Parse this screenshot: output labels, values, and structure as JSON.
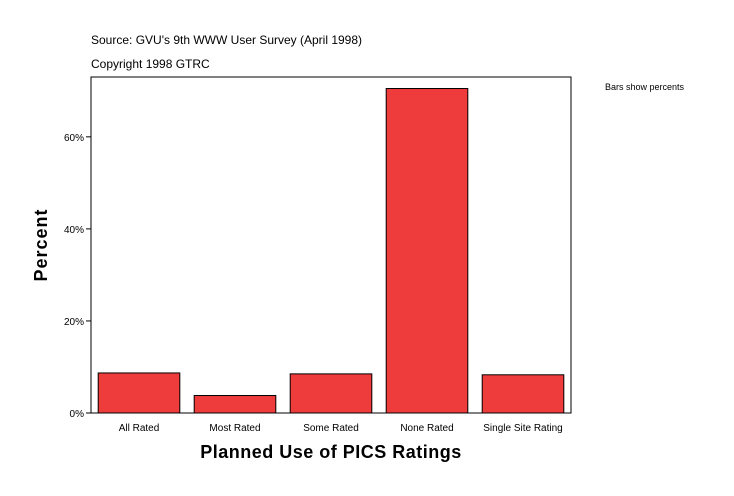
{
  "source": {
    "line1": "Source: GVU's 9th WWW User Survey (April 1998)",
    "line2": "Copyright 1998 GTRC"
  },
  "note": "Bars show percents",
  "colors": {
    "bar": "#ee3b3b",
    "bar_stroke": "#000000",
    "axis": "#000000"
  },
  "chart_data": {
    "type": "bar",
    "categories": [
      "All Rated",
      "Most Rated",
      "Some Rated",
      "None Rated",
      "Single Site Rating"
    ],
    "values": [
      8.7,
      3.8,
      8.5,
      70.5,
      8.3
    ],
    "xlabel": "Planned Use of PICS Ratings",
    "ylabel": "Percent",
    "ylim": [
      0,
      73
    ],
    "yticks": [
      0,
      20,
      40,
      60
    ],
    "ytick_labels": [
      "0%",
      "20%",
      "40%",
      "60%"
    ],
    "grid": false,
    "legend": "none"
  }
}
